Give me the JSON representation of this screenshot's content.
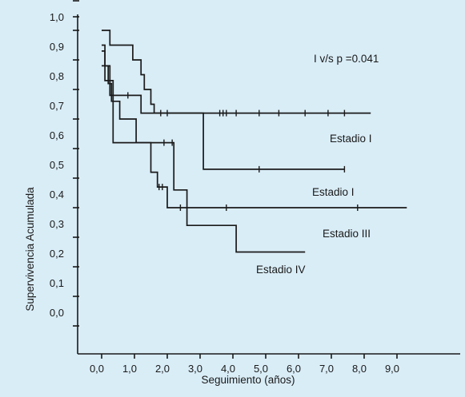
{
  "chart_data": {
    "type": "line",
    "xlabel": "Seguimiento (años)",
    "ylabel": "Supervivencia Acumulada",
    "xlim": [
      0.0,
      9.3
    ],
    "ylim": [
      0.0,
      1.0
    ],
    "x_ticks": [
      "0,0",
      "1,0",
      "2,0",
      "3,0",
      "4,0",
      "5,0",
      "6,0",
      "7,0",
      "8,0",
      "9,0"
    ],
    "y_ticks": [
      "0,0",
      "0,1",
      "0,2",
      "0,3",
      "0,4",
      "0,5",
      "0,6",
      "0,7",
      "0,8",
      "0,9",
      "1,0"
    ],
    "grid": false,
    "annotations": [
      {
        "text": "I v/s p =0.041"
      }
    ],
    "series": [
      {
        "name": "Estadio I",
        "steps": [
          [
            0.0,
            1.0
          ],
          [
            0.25,
            1.0
          ],
          [
            0.25,
            0.95
          ],
          [
            0.95,
            0.95
          ],
          [
            0.95,
            0.9
          ],
          [
            1.2,
            0.9
          ],
          [
            1.2,
            0.85
          ],
          [
            1.3,
            0.85
          ],
          [
            1.3,
            0.8
          ],
          [
            1.5,
            0.8
          ],
          [
            1.5,
            0.75
          ],
          [
            1.6,
            0.75
          ],
          [
            1.6,
            0.72
          ],
          [
            8.2,
            0.72
          ]
        ],
        "censored": [
          1.8,
          2.0,
          3.6,
          3.7,
          3.8,
          4.1,
          4.8,
          5.4,
          6.2,
          6.9,
          7.4
        ]
      },
      {
        "name": "Estadio I",
        "steps": [
          [
            0.0,
            0.88
          ],
          [
            0.1,
            0.88
          ],
          [
            0.1,
            0.83
          ],
          [
            0.35,
            0.83
          ],
          [
            0.35,
            0.78
          ],
          [
            1.2,
            0.78
          ],
          [
            1.2,
            0.72
          ],
          [
            3.1,
            0.72
          ],
          [
            3.1,
            0.53
          ],
          [
            7.4,
            0.53
          ]
        ],
        "censored": [
          0.8,
          4.8,
          7.4
        ]
      },
      {
        "name": "Estadio III",
        "steps": [
          [
            0.0,
            0.93
          ],
          [
            0.1,
            0.93
          ],
          [
            0.1,
            0.88
          ],
          [
            0.2,
            0.88
          ],
          [
            0.2,
            0.82
          ],
          [
            0.3,
            0.82
          ],
          [
            0.3,
            0.76
          ],
          [
            0.55,
            0.76
          ],
          [
            0.55,
            0.7
          ],
          [
            1.05,
            0.7
          ],
          [
            1.05,
            0.62
          ],
          [
            1.5,
            0.62
          ],
          [
            1.5,
            0.52
          ],
          [
            1.7,
            0.52
          ],
          [
            1.7,
            0.47
          ],
          [
            2.0,
            0.47
          ],
          [
            2.0,
            0.4
          ],
          [
            9.3,
            0.4
          ]
        ],
        "censored": [
          1.75,
          1.85,
          2.4,
          3.8,
          7.8
        ]
      },
      {
        "name": "Estadio IV",
        "steps": [
          [
            0.0,
            0.95
          ],
          [
            0.1,
            0.95
          ],
          [
            0.1,
            0.88
          ],
          [
            0.25,
            0.88
          ],
          [
            0.25,
            0.78
          ],
          [
            0.35,
            0.78
          ],
          [
            0.35,
            0.62
          ],
          [
            2.2,
            0.62
          ],
          [
            2.2,
            0.46
          ],
          [
            2.6,
            0.46
          ],
          [
            2.6,
            0.34
          ],
          [
            4.1,
            0.34
          ],
          [
            4.1,
            0.25
          ],
          [
            6.2,
            0.25
          ]
        ],
        "censored": [
          1.9,
          2.15
        ]
      }
    ]
  }
}
